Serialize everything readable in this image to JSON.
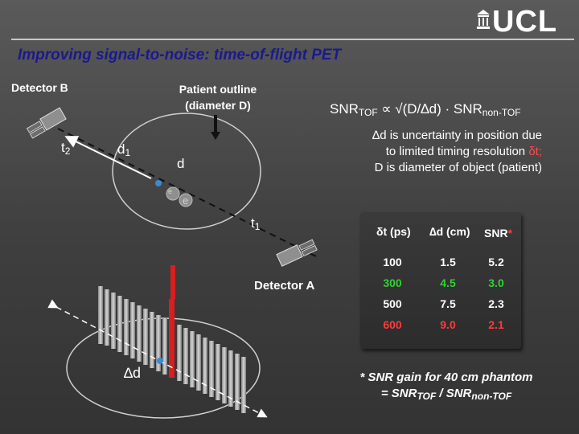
{
  "logo": {
    "text": "UCL"
  },
  "title": "Improving signal-to-noise: time-of-flight PET",
  "labels": {
    "detector_b": "Detector B",
    "detector_a": "Detector A",
    "patient_outline_line1": "Patient outline",
    "patient_outline_line2": "(diameter D)",
    "t2_base": "t",
    "t2_sub": "2",
    "d1_base": "d",
    "d1_sub": "1",
    "d": "d",
    "t1_base": "t",
    "t1_sub": "1",
    "e_plus": "e",
    "e_minus": "e",
    "delta_d": "∆d"
  },
  "formula": {
    "snr": "SNR",
    "tof_sub": "TOF",
    "middle": "∝ √(D/∆d) · SNR",
    "non_tof_sub": "non-TOF"
  },
  "explanation": {
    "line1": "∆d is uncertainty in position due",
    "line2_a": "to limited timing resolution ",
    "line2_b": "δt;",
    "line3": "D is diameter of object (patient)"
  },
  "table": {
    "headers": {
      "dt": "δt (ps)",
      "dd": "∆d (cm)",
      "snr": "SNR",
      "star": "*"
    },
    "rows": [
      {
        "dt": "100",
        "dd": "1.5",
        "snr": "5.2",
        "color": "#ffffff"
      },
      {
        "dt": "300",
        "dd": "4.5",
        "snr": "3.0",
        "color": "#33d133"
      },
      {
        "dt": "500",
        "dd": "7.5",
        "snr": "2.3",
        "color": "#ffffff"
      },
      {
        "dt": "600",
        "dd": "9.0",
        "snr": "2.1",
        "color": "#ff3b3b"
      }
    ]
  },
  "footnote": {
    "line1": "* SNR gain for 40 cm phantom",
    "line2_a": "= SNR",
    "line2_sub1": "TOF",
    "line2_b": " / SNR",
    "line2_sub2": "non-TOF"
  },
  "colors": {
    "title": "#1a1a8c",
    "accent_red": "#d81e1e",
    "accent_green": "#33d133",
    "point_blue": "#3a8ad8"
  }
}
